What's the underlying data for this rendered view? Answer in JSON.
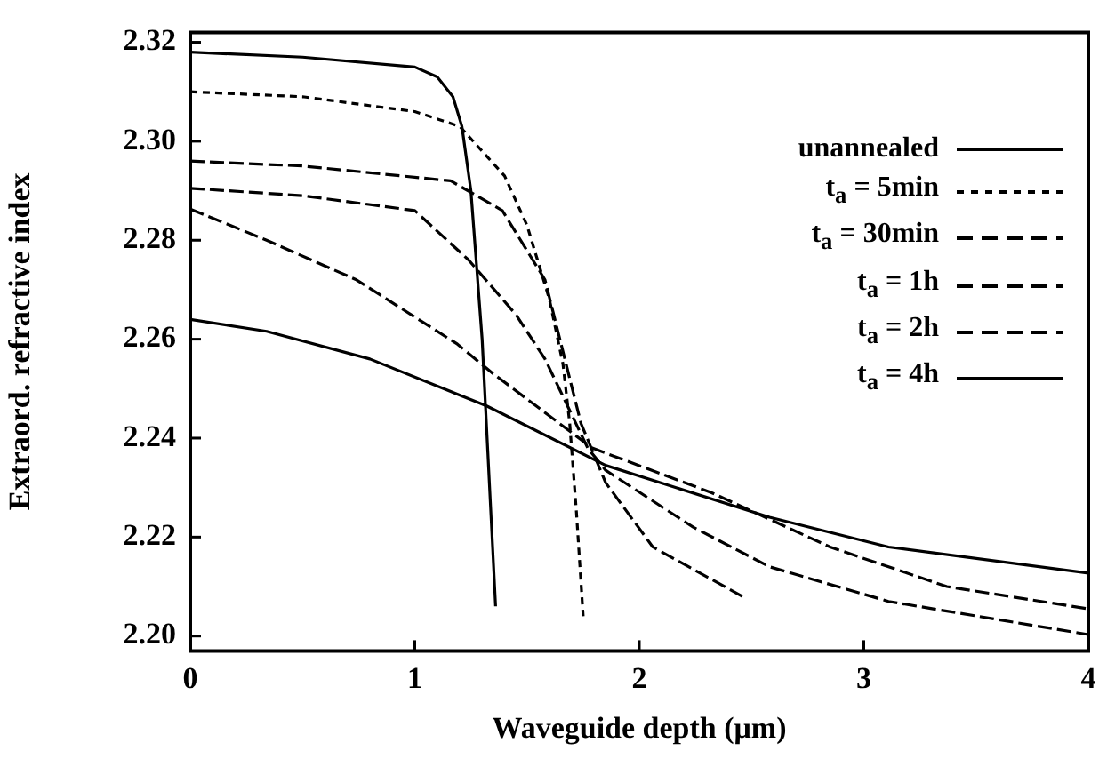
{
  "chart_data": {
    "type": "line",
    "xlabel": "Waveguide depth (μm)",
    "ylabel": "Extraord. refractive index",
    "xlim": [
      0,
      4
    ],
    "xticks": [
      0,
      1,
      2,
      3,
      4
    ],
    "ylim": [
      2.197,
      2.322
    ],
    "yticks": [
      {
        "value": 2.2,
        "label": "2.20"
      },
      2.22,
      2.24,
      2.26,
      2.28,
      {
        "value": 2.3,
        "label": "2.30"
      },
      2.32
    ],
    "grid": false,
    "legend": "top right",
    "marker": "none",
    "series": [
      {
        "name": "unannealed",
        "color": "#000000",
        "line_style": "solid",
        "x": [
          0,
          0.5,
          1.0,
          1.1,
          1.17,
          1.21,
          1.25,
          1.3,
          1.36
        ],
        "values": [
          2.318,
          2.317,
          2.315,
          2.313,
          2.309,
          2.303,
          2.29,
          2.26,
          2.206
        ]
      },
      {
        "name": "t$_{a}$ = 5min",
        "color": "#000000",
        "line_style": "dotted",
        "x": [
          0,
          0.5,
          1.0,
          1.2,
          1.4,
          1.5,
          1.6,
          1.66,
          1.69,
          1.72,
          1.75
        ],
        "values": [
          2.31,
          2.309,
          2.306,
          2.303,
          2.293,
          2.283,
          2.268,
          2.255,
          2.243,
          2.225,
          2.204
        ]
      },
      {
        "name": "t$_{a}$ = 30min",
        "color": "#000000",
        "line_style": "dashed",
        "x": [
          0,
          0.5,
          1.16,
          1.39,
          1.58,
          1.74,
          1.85,
          2.06,
          2.46
        ],
        "values": [
          2.296,
          2.295,
          2.292,
          2.286,
          2.272,
          2.243,
          2.231,
          2.218,
          2.208
        ]
      },
      {
        "name": "t$_{a}$ = 1h",
        "color": "#000000",
        "line_style": "dashed",
        "x": [
          0,
          0.5,
          1.0,
          1.24,
          1.45,
          1.58,
          1.77,
          1.85,
          2.24,
          2.58,
          3.11,
          4.0
        ],
        "values": [
          2.2905,
          2.289,
          2.286,
          2.276,
          2.265,
          2.256,
          2.238,
          2.2335,
          2.222,
          2.214,
          2.207,
          2.2003
        ]
      },
      {
        "name": "t$_{a}$ = 2h",
        "color": "#000000",
        "line_style": "dashed",
        "x": [
          0,
          0.34,
          0.74,
          1.19,
          1.35,
          1.79,
          2.32,
          2.85,
          3.37,
          4.0
        ],
        "values": [
          2.2863,
          2.28,
          2.272,
          2.259,
          2.253,
          2.238,
          2.229,
          2.218,
          2.21,
          2.2055
        ]
      },
      {
        "name": "t$_{a}$ = 4h",
        "color": "#000000",
        "line_style": "solid",
        "x": [
          0,
          0.34,
          0.8,
          1.32,
          1.85,
          2.58,
          3.11,
          4.0
        ],
        "values": [
          2.264,
          2.2616,
          2.256,
          2.2465,
          2.2345,
          2.224,
          2.218,
          2.2127
        ]
      }
    ]
  }
}
